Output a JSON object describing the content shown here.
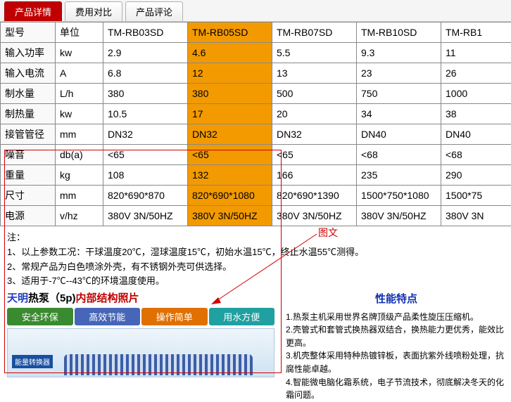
{
  "tabs": {
    "t0": "产品详情",
    "t1": "费用对比",
    "t2": "产品评论"
  },
  "table": {
    "rows": [
      [
        "型号",
        "单位",
        "TM-RB03SD",
        "TM-RB05SD",
        "TM-RB07SD",
        "TM-RB10SD",
        "TM-RB1"
      ],
      [
        "输入功率",
        "kw",
        "2.9",
        "4.6",
        "5.5",
        "9.3",
        "11"
      ],
      [
        "输入电流",
        "A",
        "6.8",
        "12",
        "13",
        "23",
        "26"
      ],
      [
        "制水量",
        "L/h",
        "380",
        "380",
        "500",
        "750",
        "1000"
      ],
      [
        "制热量",
        "kw",
        "10.5",
        "17",
        "20",
        "34",
        "38"
      ],
      [
        "接管管径",
        "mm",
        "DN32",
        "DN32",
        "DN32",
        "DN40",
        "DN40"
      ],
      [
        "噪音",
        "db(a)",
        "<65",
        "<65",
        "<65",
        "<68",
        "<68"
      ],
      [
        "重量",
        "kg",
        "108",
        "132",
        "166",
        "235",
        "290"
      ],
      [
        "尺寸",
        "mm",
        "820*690*870",
        "820*690*1080",
        "820*690*1390",
        "1500*750*1080",
        "1500*75"
      ],
      [
        "电源",
        "v/hz",
        "380V 3N/50HZ",
        "380V 3N/50HZ",
        "380V 3N/50HZ",
        "380V 3N/50HZ",
        "380V 3N"
      ]
    ]
  },
  "notes": {
    "hdr": "注：",
    "n1": "1、以上参数工况：干球温度20℃，湿球温度15℃，初始水温15℃，终止水温55℃测得。",
    "n2": "2、常规产品为白色喷涂外壳，有不锈钢外壳可供选择。",
    "n3": "3、适用于-7℃--43℃的环境温度使用。"
  },
  "struct": {
    "prefix": "天明",
    "mid": "热泵（5p)",
    "suffix": "内部结构照片",
    "b1": "安全环保",
    "b2": "高效节能",
    "b3": "操作简单",
    "b4": "用水方便",
    "bluebox": "能量转换器"
  },
  "perf": {
    "title": "性能特点",
    "p1": "1.热泵主机采用世界名牌顶级产品柔性旋压压缩机。",
    "p2": "2.壳管式和套管式换热器双结合，换热能力更优秀，能效比更高。",
    "p3": "3.机壳整体采用特种热镀锌板，表面抗紫外线喷粉处理，抗腐性能卓越。",
    "p4": "4.智能微电脑化霜系统，电子节流技术，彻底解决冬天的化霜问题。"
  },
  "annot": {
    "label": "图文"
  }
}
